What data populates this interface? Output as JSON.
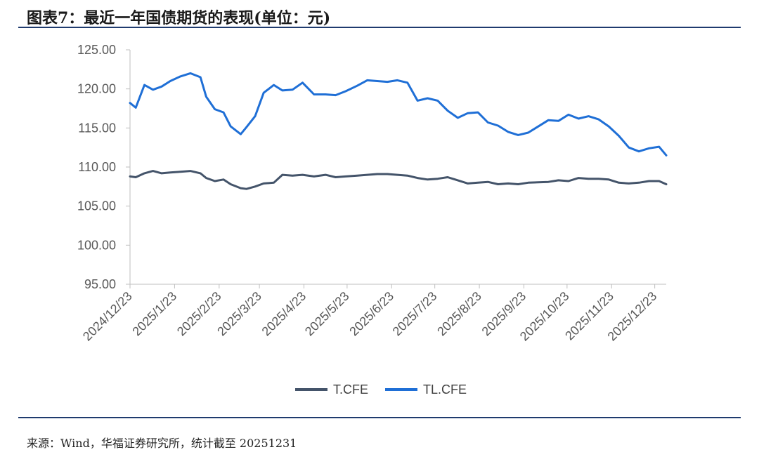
{
  "header": {
    "title": "图表7：最近一年国债期货的表现(单位：元)"
  },
  "footer": {
    "source": "来源：Wind，华福证券研究所，统计截至 20251231"
  },
  "colors": {
    "T.CFE": "#44546a",
    "TL.CFE": "#1f6fd6",
    "axis": "#bfbfbf",
    "rule": "#1f3b6e"
  },
  "chart_data": {
    "type": "line",
    "title": "",
    "xlabel": "",
    "ylabel": "",
    "ylim": [
      95,
      125
    ],
    "yticks": [
      "95.00",
      "100.00",
      "105.00",
      "110.00",
      "115.00",
      "120.00",
      "125.00"
    ],
    "xticks": [
      "2024/12/23",
      "2025/1/23",
      "2025/2/23",
      "2025/3/23",
      "2025/4/23",
      "2025/5/23",
      "2025/6/23",
      "2025/7/23",
      "2025/8/23",
      "2025/9/23",
      "2025/10/23",
      "2025/11/23",
      "2025/12/23"
    ],
    "grid": false,
    "legend": "bottom",
    "series": [
      {
        "name": "T.CFE",
        "x": [
          "2024-12-23",
          "2024-12-27",
          "2025-01-02",
          "2025-01-08",
          "2025-01-14",
          "2025-01-20",
          "2025-01-27",
          "2025-02-03",
          "2025-02-10",
          "2025-02-14",
          "2025-02-20",
          "2025-02-26",
          "2025-03-03",
          "2025-03-10",
          "2025-03-14",
          "2025-03-20",
          "2025-03-26",
          "2025-04-02",
          "2025-04-08",
          "2025-04-15",
          "2025-04-22",
          "2025-04-30",
          "2025-05-08",
          "2025-05-15",
          "2025-05-22",
          "2025-05-30",
          "2025-06-06",
          "2025-06-13",
          "2025-06-20",
          "2025-06-27",
          "2025-07-04",
          "2025-07-11",
          "2025-07-18",
          "2025-07-25",
          "2025-08-01",
          "2025-08-08",
          "2025-08-15",
          "2025-08-22",
          "2025-08-29",
          "2025-09-05",
          "2025-09-12",
          "2025-09-19",
          "2025-09-26",
          "2025-10-10",
          "2025-10-17",
          "2025-10-24",
          "2025-10-31",
          "2025-11-07",
          "2025-11-14",
          "2025-11-21",
          "2025-11-28",
          "2025-12-05",
          "2025-12-12",
          "2025-12-19",
          "2025-12-26",
          "2025-12-31"
        ],
        "values": [
          108.8,
          108.7,
          109.2,
          109.5,
          109.2,
          109.3,
          109.4,
          109.5,
          109.2,
          108.6,
          108.2,
          108.4,
          107.8,
          107.3,
          107.2,
          107.5,
          107.9,
          108.0,
          109.0,
          108.9,
          109.0,
          108.8,
          109.0,
          108.7,
          108.8,
          108.9,
          109.0,
          109.1,
          109.1,
          109.0,
          108.9,
          108.6,
          108.4,
          108.5,
          108.7,
          108.3,
          107.9,
          108.0,
          108.1,
          107.8,
          107.9,
          107.8,
          108.0,
          108.1,
          108.3,
          108.2,
          108.6,
          108.5,
          108.5,
          108.4,
          108.0,
          107.9,
          108.0,
          108.2,
          108.2,
          107.8
        ]
      },
      {
        "name": "TL.CFE",
        "x": [
          "2024-12-23",
          "2024-12-27",
          "2025-01-02",
          "2025-01-08",
          "2025-01-14",
          "2025-01-20",
          "2025-01-27",
          "2025-02-03",
          "2025-02-10",
          "2025-02-14",
          "2025-02-20",
          "2025-02-26",
          "2025-03-03",
          "2025-03-10",
          "2025-03-14",
          "2025-03-20",
          "2025-03-26",
          "2025-04-02",
          "2025-04-08",
          "2025-04-15",
          "2025-04-22",
          "2025-04-30",
          "2025-05-08",
          "2025-05-15",
          "2025-05-22",
          "2025-05-30",
          "2025-06-06",
          "2025-06-13",
          "2025-06-20",
          "2025-06-27",
          "2025-07-04",
          "2025-07-11",
          "2025-07-18",
          "2025-07-25",
          "2025-08-01",
          "2025-08-08",
          "2025-08-15",
          "2025-08-22",
          "2025-08-29",
          "2025-09-05",
          "2025-09-12",
          "2025-09-19",
          "2025-09-26",
          "2025-10-10",
          "2025-10-17",
          "2025-10-24",
          "2025-10-31",
          "2025-11-07",
          "2025-11-14",
          "2025-11-21",
          "2025-11-28",
          "2025-12-05",
          "2025-12-12",
          "2025-12-19",
          "2025-12-26",
          "2025-12-31"
        ],
        "values": [
          118.2,
          117.6,
          120.5,
          119.9,
          120.3,
          121.0,
          121.6,
          122.0,
          121.5,
          119.0,
          117.4,
          117.0,
          115.2,
          114.2,
          115.1,
          116.5,
          119.5,
          120.5,
          119.8,
          119.9,
          120.8,
          119.3,
          119.3,
          119.2,
          119.7,
          120.4,
          121.1,
          121.0,
          120.9,
          121.1,
          120.8,
          118.5,
          118.8,
          118.5,
          117.2,
          116.3,
          116.9,
          117.0,
          115.7,
          115.3,
          114.5,
          114.1,
          114.4,
          116.0,
          115.9,
          116.7,
          116.2,
          116.5,
          116.1,
          115.2,
          114.0,
          112.5,
          112.0,
          112.4,
          112.6,
          111.5
        ]
      }
    ]
  }
}
